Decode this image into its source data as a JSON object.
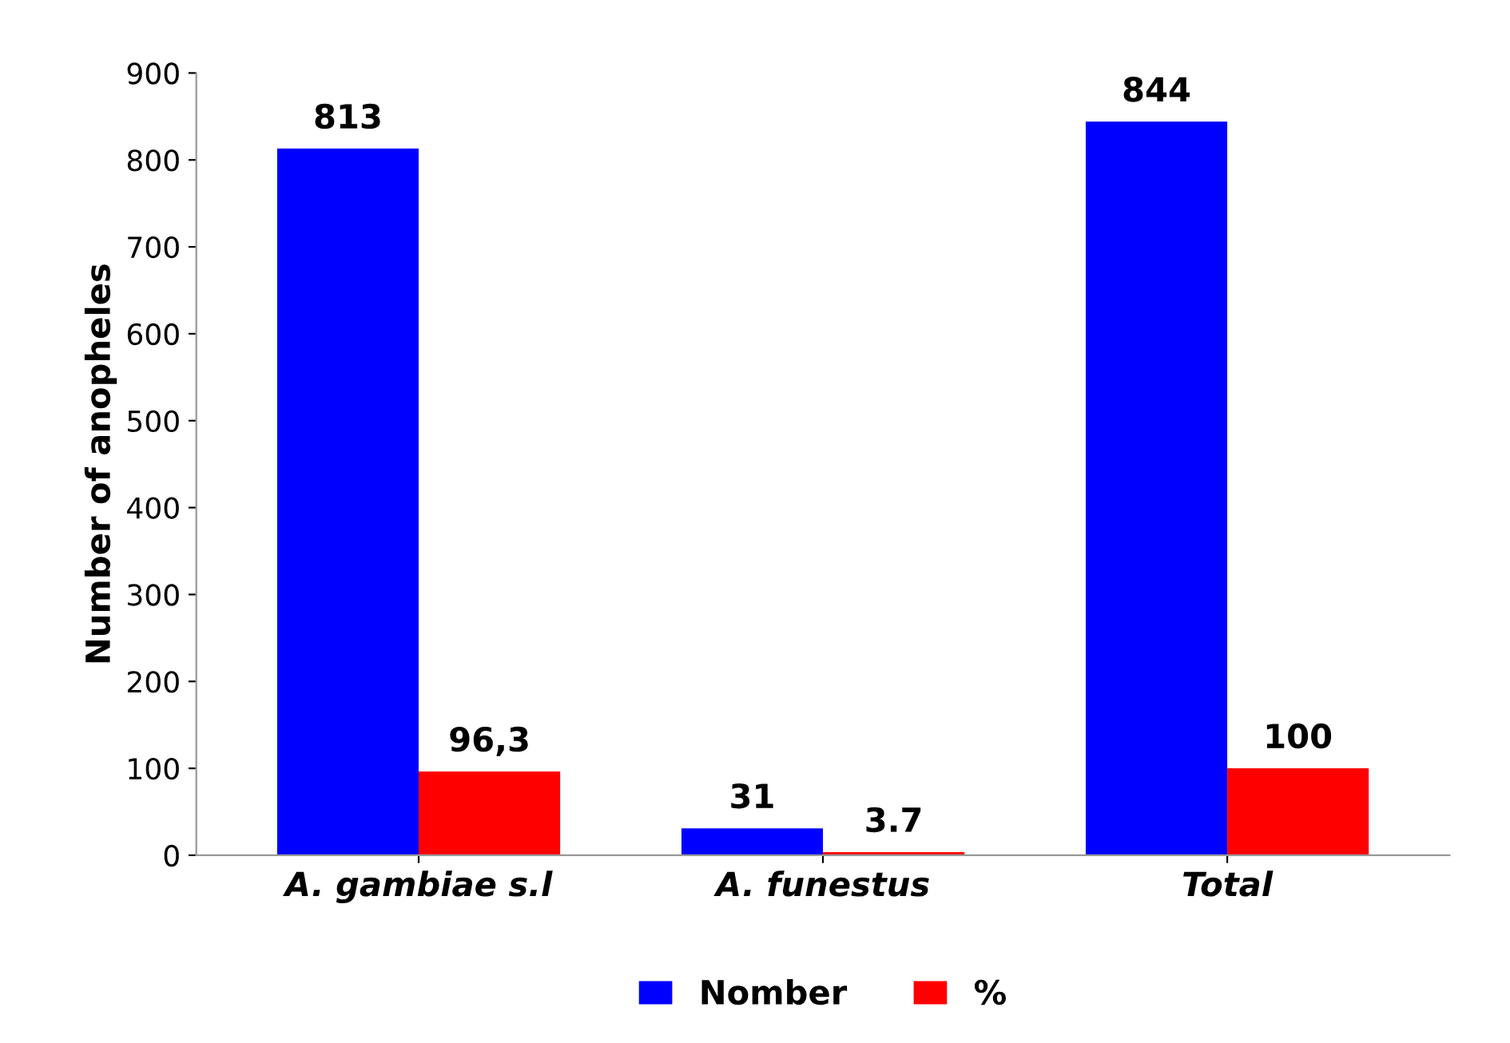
{
  "chart_data": {
    "type": "bar",
    "ylabel": "Number of anopheles",
    "categories": [
      "A. gambiae s.l",
      "A. funestus",
      "Total"
    ],
    "series": [
      {
        "name": "Nomber",
        "color": "#0000ff",
        "values": [
          813,
          31,
          844
        ],
        "value_labels": [
          "813",
          "31",
          "844"
        ]
      },
      {
        "name": "%",
        "color": "#ff0000",
        "values": [
          96.3,
          3.7,
          100
        ],
        "value_labels": [
          "96,3",
          "3.7",
          "100"
        ]
      }
    ],
    "ylim": [
      0,
      900
    ],
    "yticks": [
      0,
      100,
      200,
      300,
      400,
      500,
      600,
      700,
      800,
      900
    ],
    "grid": false,
    "legend": "bottom"
  }
}
